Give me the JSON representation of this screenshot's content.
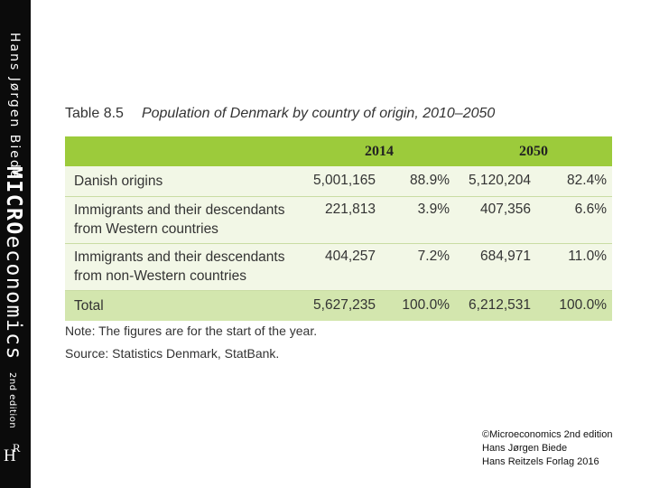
{
  "sidebar": {
    "author": "Hans Jørgen Biede",
    "title_bold": "MICRO",
    "title_rest": "economics",
    "edition": "2nd edition",
    "logo_h": "H",
    "logo_r": "R"
  },
  "table": {
    "number": "Table 8.5",
    "title": "Population of Denmark by country of origin, 2010–2050",
    "years": [
      "2014",
      "2050"
    ],
    "rows": [
      {
        "label_lines": [
          "Danish origins"
        ],
        "n2014": "5,001,165",
        "p2014": "88.9%",
        "n2050": "5,120,204",
        "p2050": "82.4%"
      },
      {
        "label_lines": [
          "Immigrants and their descendants",
          "from Western countries"
        ],
        "n2014": "221,813",
        "p2014": "3.9%",
        "n2050": "407,356",
        "p2050": "6.6%"
      },
      {
        "label_lines": [
          "Immigrants and their descendants",
          "from non-Western countries"
        ],
        "n2014": "404,257",
        "p2014": "7.2%",
        "n2050": "684,971",
        "p2050": "11.0%"
      }
    ],
    "total": {
      "label": "Total",
      "n2014": "5,627,235",
      "p2014": "100.0%",
      "n2050": "6,212,531",
      "p2050": "100.0%"
    },
    "note": "Note: The figures are for the start of the year.",
    "source": "Source: Statistics Denmark, StatBank."
  },
  "credit": {
    "line1": "©Microeconomics 2nd edition",
    "line2": "Hans Jørgen Biede",
    "line3": "Hans Reitzels Forlag 2016"
  }
}
